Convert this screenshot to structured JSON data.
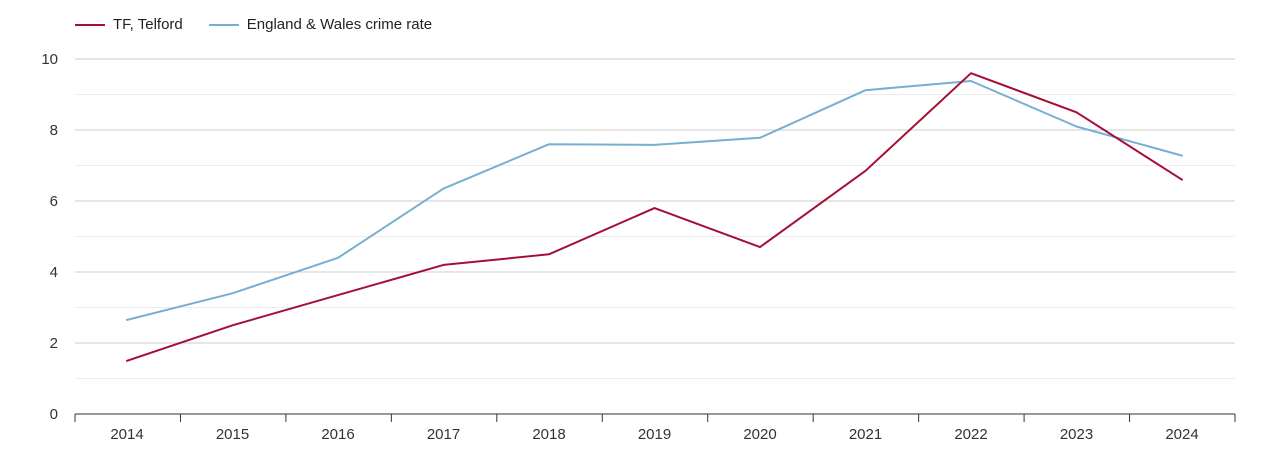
{
  "chart_data": {
    "type": "line",
    "title": "",
    "xlabel": "",
    "ylabel": "",
    "categories": [
      "2014",
      "2015",
      "2016",
      "2017",
      "2018",
      "2019",
      "2020",
      "2021",
      "2022",
      "2023",
      "2024"
    ],
    "ylim": [
      0,
      10
    ],
    "yticks": [
      0,
      2,
      4,
      6,
      8,
      10
    ],
    "minor_gridlines_every": 1,
    "grid": true,
    "legend_position": "top-left",
    "series": [
      {
        "name": "TF, Telford",
        "color": "#a50f35",
        "values": [
          1.5,
          2.5,
          3.35,
          4.2,
          4.5,
          5.8,
          4.7,
          6.85,
          9.6,
          8.5,
          6.6
        ]
      },
      {
        "name": "England & Wales crime rate",
        "color": "#77afd0",
        "values": [
          2.65,
          3.4,
          4.4,
          6.35,
          7.6,
          7.58,
          7.78,
          9.12,
          9.38,
          8.1,
          7.28
        ]
      }
    ]
  }
}
